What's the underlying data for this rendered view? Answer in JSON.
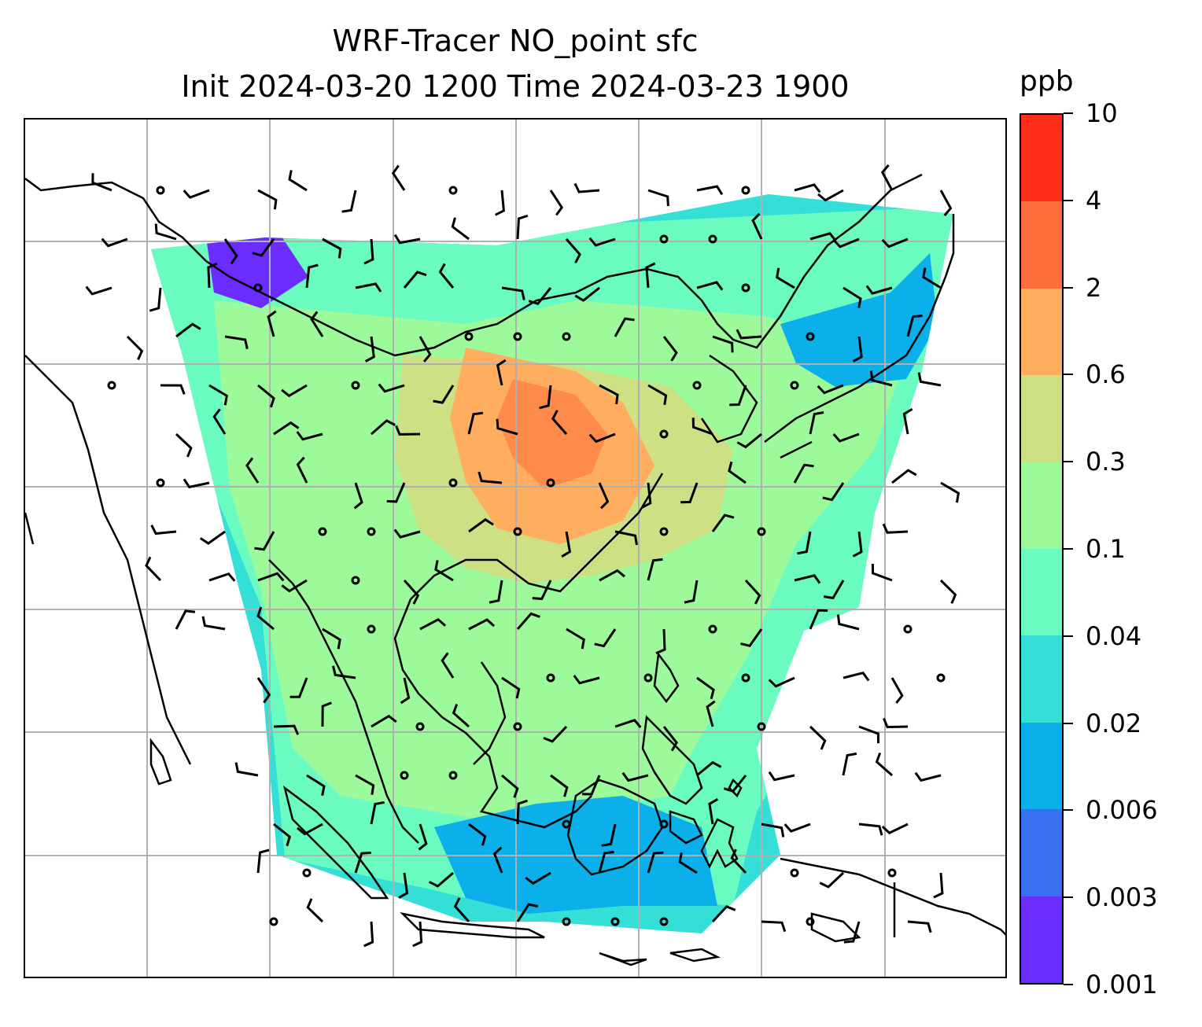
{
  "title": {
    "line1": "WRF-Tracer NO_point sfc",
    "line2": "Init 2024-03-20 1200 Time 2024-03-23 1900"
  },
  "colorbar": {
    "unit": "ppb",
    "tick_labels": [
      "0.001",
      "0.003",
      "0.006",
      "0.02",
      "0.04",
      "0.1",
      "0.3",
      "0.6",
      "2",
      "4",
      "10"
    ],
    "colors": [
      "#6a2cff",
      "#3a6ff2",
      "#0bb0eb",
      "#33dfd6",
      "#69fbc0",
      "#9cfa9a",
      "#cde184",
      "#ffad5e",
      "#ff6f3b",
      "#ff2d19"
    ]
  },
  "map": {
    "field_palette": [
      "#6a2cff",
      "#3a6ff2",
      "#0bb0eb",
      "#33dfd6",
      "#69fbc0",
      "#9cfa9a",
      "#cde184",
      "#ffad5e",
      "#ff6f3b",
      "#ff2d19"
    ],
    "gridlines": "on",
    "coastline_color": "#000000",
    "gridline_color": "#b0b0b0"
  }
}
